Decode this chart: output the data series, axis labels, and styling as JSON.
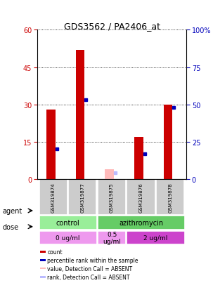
{
  "title": "GDS3562 / PA2406_at",
  "samples": [
    "GSM319874",
    "GSM319877",
    "GSM319875",
    "GSM319876",
    "GSM319878"
  ],
  "red_bar_heights": [
    28,
    52,
    4,
    17,
    30
  ],
  "blue_marker_values": [
    20,
    53,
    4,
    17,
    48
  ],
  "absent_flags": [
    false,
    false,
    true,
    false,
    false
  ],
  "ylim_left": [
    0,
    60
  ],
  "ylim_right": [
    0,
    100
  ],
  "yticks_left": [
    0,
    15,
    30,
    45,
    60
  ],
  "yticks_right": [
    0,
    25,
    50,
    75,
    100
  ],
  "ytick_labels_right": [
    "0",
    "25",
    "50",
    "75",
    "100%"
  ],
  "red_bar_color": "#cc0000",
  "red_bar_absent_color": "#ffbbbb",
  "blue_marker_color": "#0000bb",
  "blue_marker_absent_color": "#bbbbff",
  "sample_box_color": "#cccccc",
  "agent_groups": [
    {
      "text": "control",
      "start": 0,
      "end": 1,
      "color": "#99ee99"
    },
    {
      "text": "azithromycin",
      "start": 2,
      "end": 4,
      "color": "#66cc66"
    }
  ],
  "dose_groups": [
    {
      "text": "0 ug/ml",
      "start": 0,
      "end": 1,
      "color": "#ee99ee"
    },
    {
      "text": "0.5\nug/ml",
      "start": 2,
      "end": 2,
      "color": "#ee99ee"
    },
    {
      "text": "2 ug/ml",
      "start": 3,
      "end": 4,
      "color": "#cc44cc"
    }
  ],
  "legend_items": [
    {
      "color": "#cc0000",
      "label": "count"
    },
    {
      "color": "#0000bb",
      "label": "percentile rank within the sample"
    },
    {
      "color": "#ffbbbb",
      "label": "value, Detection Call = ABSENT"
    },
    {
      "color": "#bbbbff",
      "label": "rank, Detection Call = ABSENT"
    }
  ],
  "left_tick_color": "#cc0000",
  "right_tick_color": "#0000bb",
  "grid_color": "black",
  "grid_linestyle": ":",
  "bg_color": "white"
}
